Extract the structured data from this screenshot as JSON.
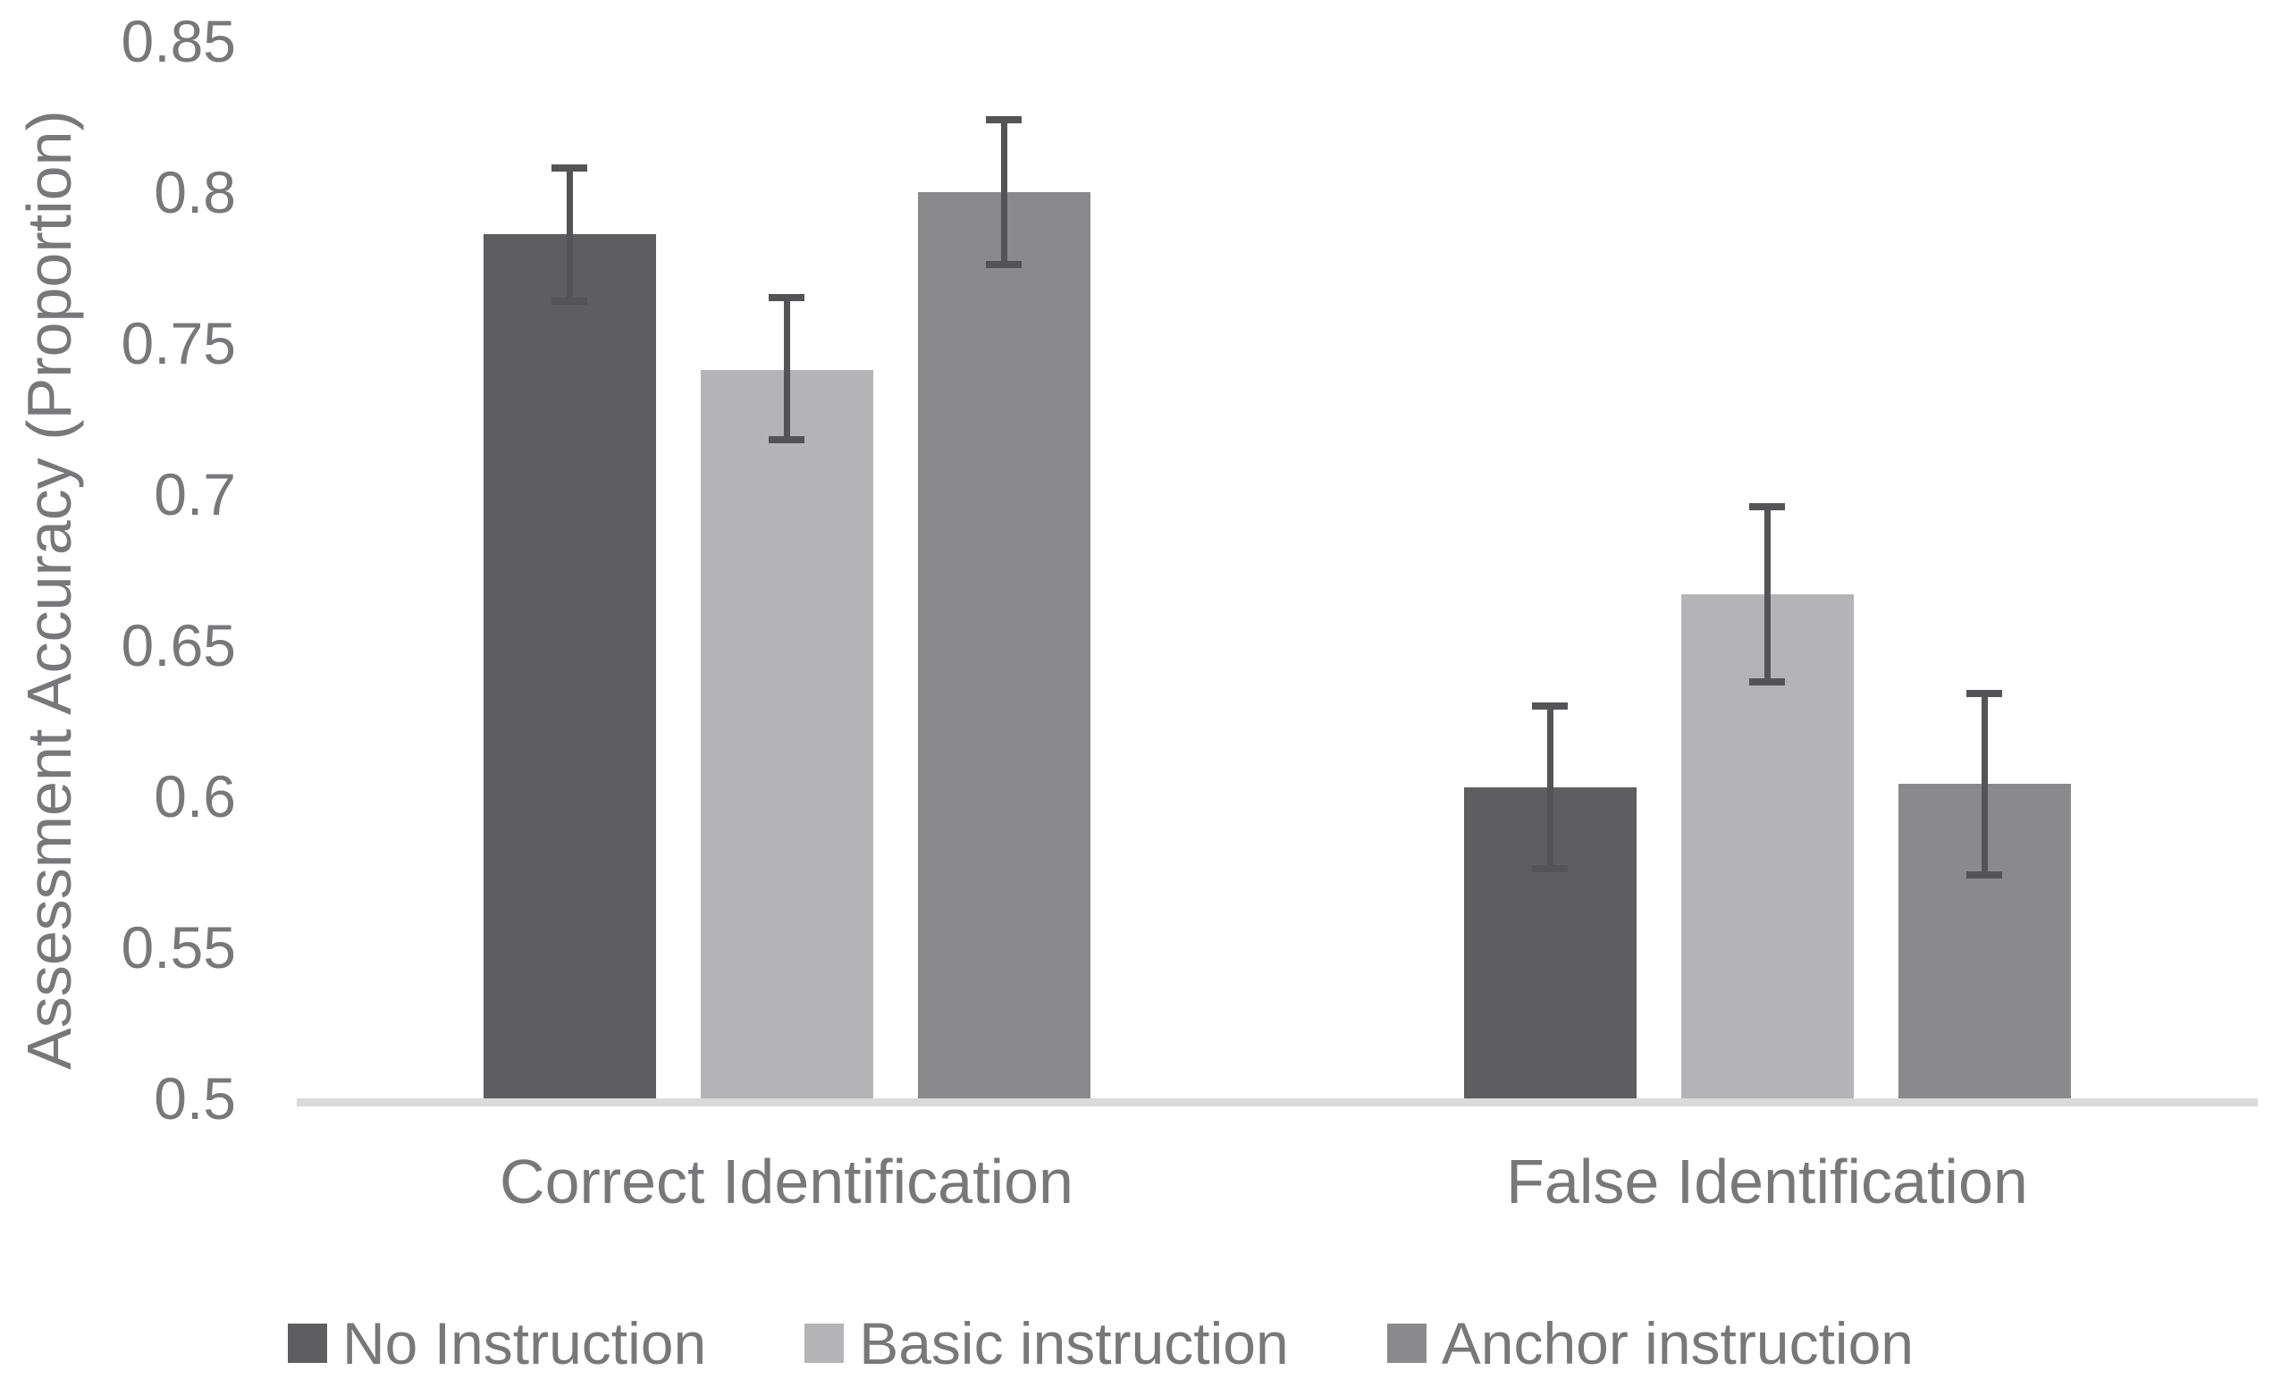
{
  "figure": {
    "background": "#ffffff"
  },
  "chart_data": {
    "type": "bar",
    "title": "",
    "xlabel": "",
    "ylabel": "Assessment Accuracy (Proportion)",
    "ylim": [
      0.5,
      0.85
    ],
    "ytick_values": [
      0.85,
      0.8,
      0.75,
      0.7,
      0.65,
      0.6,
      0.55,
      0.5
    ],
    "ytick_labels": [
      "0.85",
      "0.8",
      "0.75",
      "0.7",
      "0.65",
      "0.6",
      "0.55",
      "0.5"
    ],
    "categories": [
      "Correct Identification",
      "False Identification"
    ],
    "series": [
      {
        "name": "No Instruction",
        "color": "#5e5e60",
        "values": [
          0.786,
          0.603
        ],
        "error_upper": [
          0.808,
          0.63
        ],
        "error_lower": [
          0.764,
          0.576
        ]
      },
      {
        "name": "Basic instruction",
        "color": "#b4b4b6",
        "values": [
          0.741,
          0.667
        ],
        "error_upper": [
          0.765,
          0.696
        ],
        "error_lower": [
          0.718,
          0.638
        ]
      },
      {
        "name": "Anchor instruction",
        "color": "#8a8a8c",
        "values": [
          0.8,
          0.604
        ],
        "error_upper": [
          0.824,
          0.634
        ],
        "error_lower": [
          0.776,
          0.574
        ]
      }
    ],
    "error_bars": true,
    "error_bar_color": "#545456",
    "axis_line_color": "#dadada",
    "text_color": "#78787a",
    "grid": false,
    "legend_position": "bottom"
  }
}
